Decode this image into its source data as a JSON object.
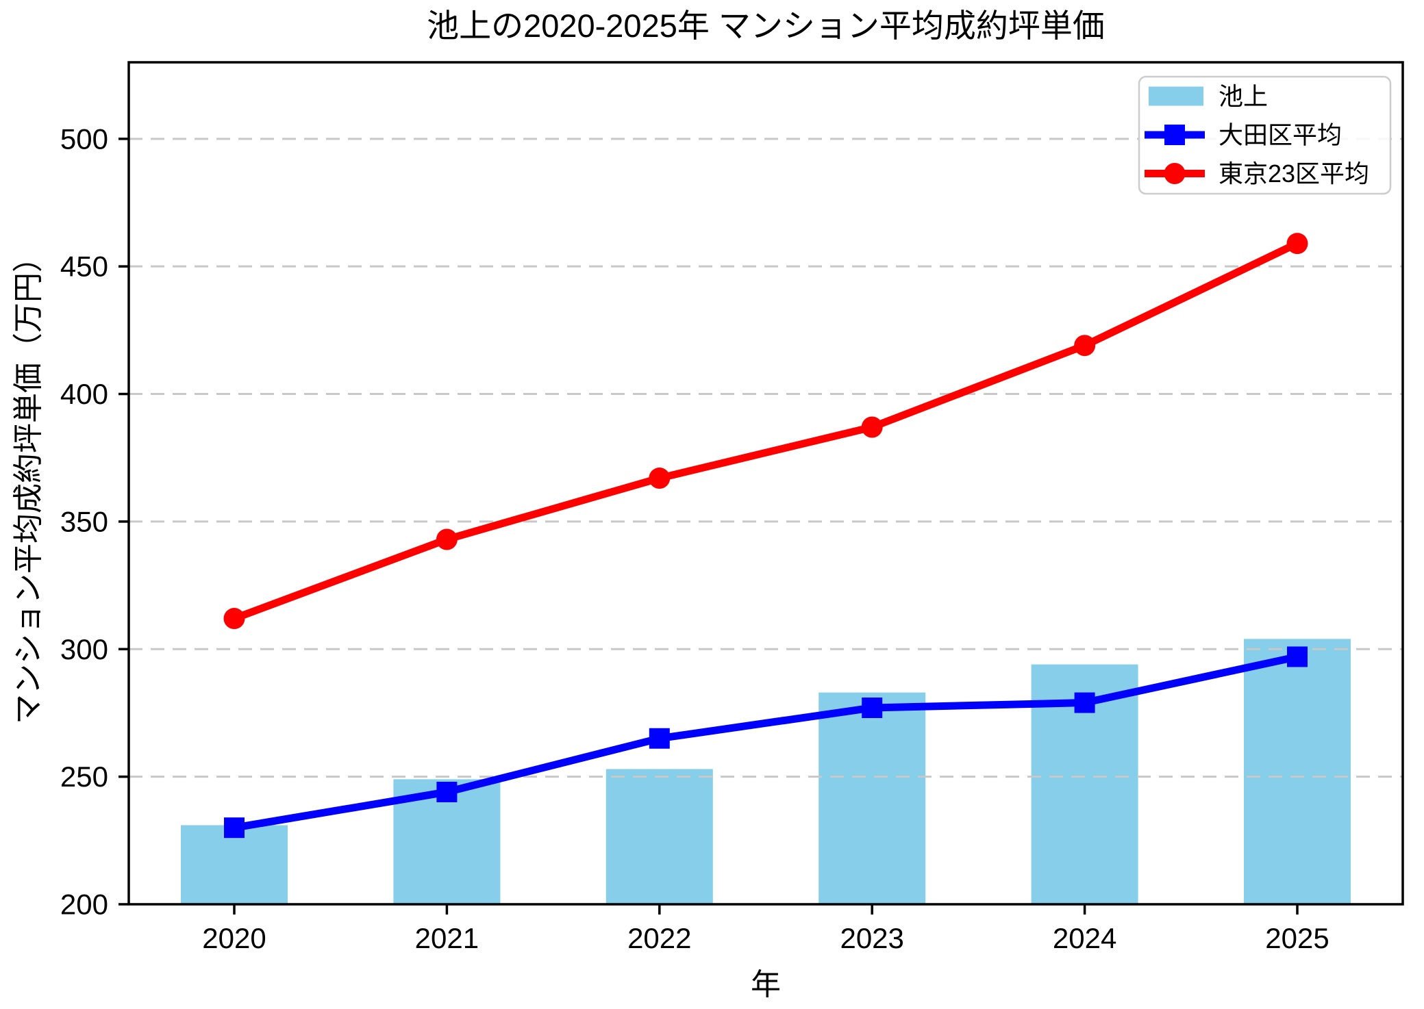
{
  "chart_data": {
    "type": "bar+line",
    "title": "池上の2020-2025年 マンション平均成約坪単価",
    "xlabel": "年",
    "ylabel": "マンション平均成約坪単価（万円）",
    "categories": [
      "2020",
      "2021",
      "2022",
      "2023",
      "2024",
      "2025"
    ],
    "series": [
      {
        "name": "池上",
        "type": "bar",
        "marker": "none",
        "color": "#87CEEB",
        "values": [
          231,
          249,
          253,
          283,
          294,
          304
        ]
      },
      {
        "name": "大田区平均",
        "type": "line",
        "marker": "square",
        "color": "#0000FF",
        "values": [
          230,
          244,
          265,
          277,
          279,
          297
        ]
      },
      {
        "name": "東京23区平均",
        "type": "line",
        "marker": "circle",
        "color": "#FF0000",
        "values": [
          312,
          343,
          367,
          387,
          419,
          459
        ]
      }
    ],
    "ylim": [
      200,
      530
    ],
    "yticks": [
      200,
      250,
      300,
      350,
      400,
      450,
      500
    ],
    "grid": "horizontal-dashed",
    "legend_position": "upper-right"
  },
  "colors": {
    "background": "#FFFFFF",
    "bar": "#87CEEB",
    "line_ota": "#0000FF",
    "line_tokyo23": "#FF0000",
    "grid": "#C8C8C8",
    "spine": "#000000",
    "tick_text": "#000000",
    "legend_border": "#CCCCCC",
    "legend_fill": "#FFFFFF"
  }
}
